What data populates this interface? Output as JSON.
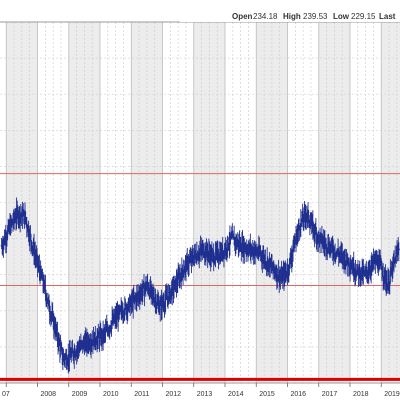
{
  "header": {
    "open_label": "Open",
    "open_value": "234.18",
    "high_label": "High",
    "high_value": "239.53",
    "low_label": "Low",
    "low_value": "229.15",
    "last_label": "Last"
  },
  "chart_data": {
    "type": "ohlc",
    "title": "",
    "xlabel": "",
    "ylabel": "",
    "x_ticks": [
      "07",
      "2008",
      "2009",
      "2010",
      "2011",
      "2012",
      "2013",
      "2014",
      "2015",
      "2016",
      "2017",
      "2018",
      "2019"
    ],
    "xlim": [
      2006.8,
      2019.6
    ],
    "ylim": [
      0,
      100
    ],
    "y_axis_values_shown": false,
    "grid": true,
    "alternating_year_shading": true,
    "bar_color": "#1f2f8f",
    "horizontal_lines": [
      {
        "level": 58,
        "color": "#e06666",
        "style": "thin"
      },
      {
        "level": 27,
        "color": "#e06666",
        "style": "thin"
      },
      {
        "level": 1,
        "color": "#dd0000",
        "style": "thick"
      }
    ],
    "anchor_points_note_free": true,
    "path": [
      [
        2006.85,
        38
      ],
      [
        2007.1,
        43
      ],
      [
        2007.35,
        47
      ],
      [
        2007.6,
        46
      ],
      [
        2007.8,
        39
      ],
      [
        2008.0,
        33
      ],
      [
        2008.2,
        27
      ],
      [
        2008.4,
        20
      ],
      [
        2008.6,
        14
      ],
      [
        2008.8,
        7
      ],
      [
        2009.0,
        7
      ],
      [
        2009.2,
        9
      ],
      [
        2009.5,
        11
      ],
      [
        2009.8,
        12
      ],
      [
        2010.1,
        13
      ],
      [
        2010.4,
        17
      ],
      [
        2010.7,
        20
      ],
      [
        2011.0,
        22
      ],
      [
        2011.3,
        25
      ],
      [
        2011.5,
        27
      ],
      [
        2011.7,
        24
      ],
      [
        2011.9,
        21
      ],
      [
        2012.1,
        23
      ],
      [
        2012.4,
        27
      ],
      [
        2012.7,
        32
      ],
      [
        2013.0,
        35
      ],
      [
        2013.3,
        37
      ],
      [
        2013.6,
        35
      ],
      [
        2013.9,
        36
      ],
      [
        2014.2,
        40
      ],
      [
        2014.5,
        38
      ],
      [
        2014.8,
        37
      ],
      [
        2015.1,
        36
      ],
      [
        2015.4,
        33
      ],
      [
        2015.6,
        31
      ],
      [
        2015.8,
        29
      ],
      [
        2016.0,
        31
      ],
      [
        2016.2,
        38
      ],
      [
        2016.4,
        44
      ],
      [
        2016.6,
        47
      ],
      [
        2016.8,
        43
      ],
      [
        2017.0,
        40
      ],
      [
        2017.3,
        38
      ],
      [
        2017.6,
        36
      ],
      [
        2017.9,
        34
      ],
      [
        2018.2,
        31
      ],
      [
        2018.5,
        30
      ],
      [
        2018.8,
        34
      ],
      [
        2019.0,
        32
      ],
      [
        2019.2,
        27
      ],
      [
        2019.4,
        33
      ],
      [
        2019.58,
        38
      ]
    ]
  }
}
